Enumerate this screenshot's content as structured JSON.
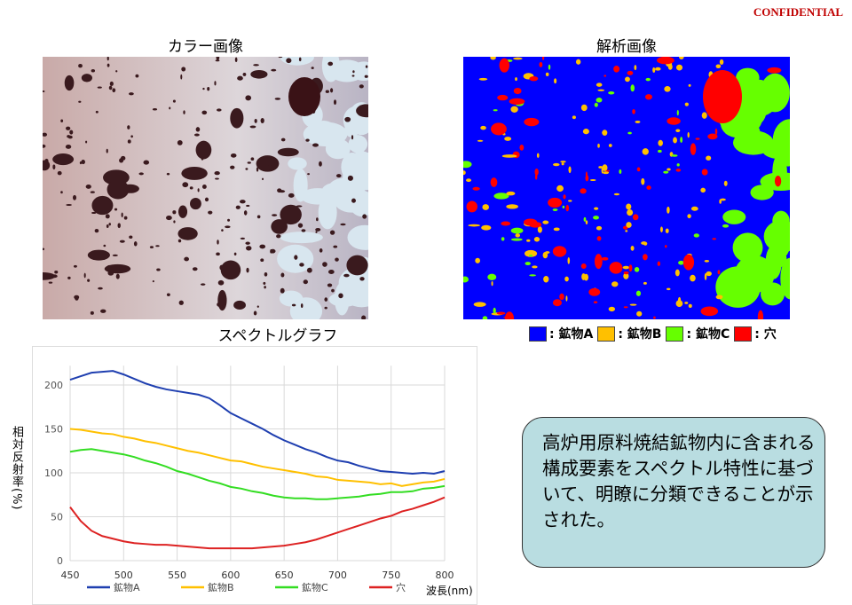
{
  "confidential": "CONFIDENTIAL",
  "color_image_title": "カラー画像",
  "analysis_image_title": "解析画像",
  "spectral_graph_title": "スペクトルグラフ",
  "analysis_legend": [
    {
      "label": ": 鉱物A",
      "color": "#0000ff"
    },
    {
      "label": ": 鉱物B",
      "color": "#ffc000"
    },
    {
      "label": ": 鉱物C",
      "color": "#66ff00"
    },
    {
      "label": " : 穴",
      "color": "#ff0000"
    }
  ],
  "note": "高炉用原料焼結鉱物内に含まれる構成要素をスペクトル特性に基づいて、明瞭に分類できることが示された。",
  "chart_data": {
    "type": "line",
    "title": "スペクトルグラフ",
    "xlabel": "波長(nm)",
    "ylabel": "相対反射率(%)",
    "xlim": [
      450,
      800
    ],
    "ylim": [
      0,
      220
    ],
    "xticks": [
      450,
      500,
      550,
      600,
      650,
      700,
      750,
      800
    ],
    "yticks": [
      0,
      50,
      100,
      150,
      200
    ],
    "grid": true,
    "legend": "bottom",
    "x": [
      450,
      460,
      470,
      480,
      490,
      500,
      510,
      520,
      530,
      540,
      550,
      560,
      570,
      580,
      590,
      600,
      610,
      620,
      630,
      640,
      650,
      660,
      670,
      680,
      690,
      700,
      710,
      720,
      730,
      740,
      750,
      760,
      770,
      780,
      790,
      800
    ],
    "series": [
      {
        "name": "鉱物A",
        "color": "#1f3fb0",
        "values": [
          206,
          210,
          214,
          215,
          216,
          212,
          207,
          202,
          198,
          195,
          193,
          191,
          189,
          185,
          177,
          168,
          162,
          156,
          150,
          143,
          137,
          132,
          127,
          123,
          118,
          114,
          112,
          108,
          105,
          102,
          101,
          100,
          99,
          100,
          99,
          102
        ]
      },
      {
        "name": "鉱物B",
        "color": "#ffc000",
        "values": [
          150,
          149,
          147,
          145,
          144,
          141,
          139,
          136,
          134,
          131,
          128,
          125,
          123,
          120,
          117,
          114,
          113,
          110,
          107,
          105,
          103,
          101,
          99,
          96,
          95,
          92,
          91,
          90,
          89,
          87,
          88,
          85,
          87,
          89,
          90,
          93
        ]
      },
      {
        "name": "鉱物C",
        "color": "#33dd22",
        "values": [
          124,
          126,
          127,
          125,
          123,
          121,
          118,
          114,
          111,
          107,
          102,
          99,
          95,
          91,
          88,
          84,
          82,
          79,
          77,
          74,
          72,
          71,
          71,
          70,
          70,
          71,
          72,
          73,
          75,
          76,
          78,
          78,
          79,
          82,
          83,
          85
        ]
      },
      {
        "name": "穴",
        "color": "#dd2222",
        "values": [
          61,
          45,
          34,
          28,
          25,
          22,
          20,
          19,
          18,
          18,
          17,
          16,
          15,
          14,
          14,
          14,
          14,
          14,
          15,
          16,
          17,
          19,
          21,
          24,
          28,
          32,
          36,
          40,
          44,
          48,
          51,
          56,
          59,
          63,
          67,
          72
        ]
      }
    ]
  }
}
